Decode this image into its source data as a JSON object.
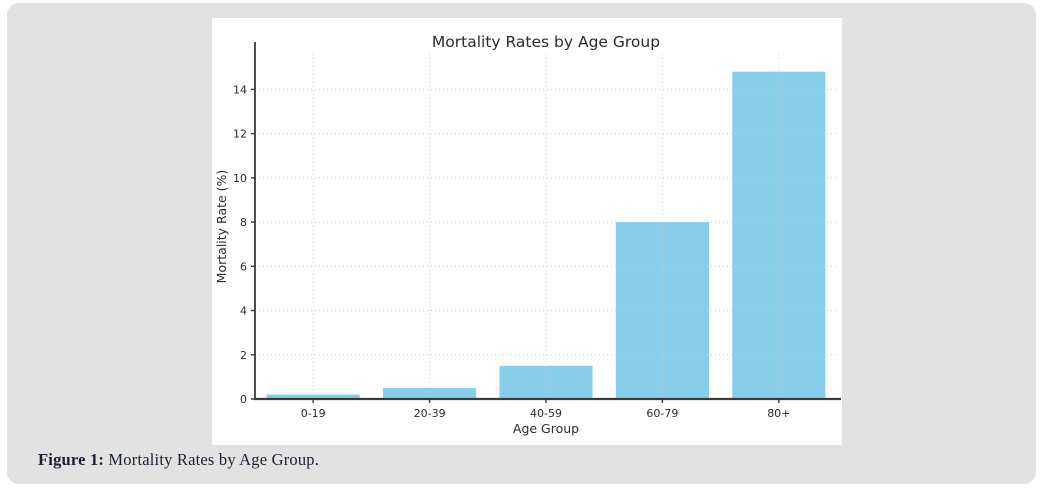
{
  "page": {
    "background_color": "#ffffff",
    "panel_color": "#e2e2e2",
    "card_color": "#ffffff"
  },
  "figure_caption": {
    "label": "Figure 1:",
    "text": " Mortality Rates by Age Group.",
    "color": "#1a2133"
  },
  "chart_data": {
    "type": "bar",
    "title": "Mortality Rates by Age Group",
    "categories": [
      "0-19",
      "20-39",
      "40-59",
      "60-79",
      "80+"
    ],
    "values": [
      0.2,
      0.5,
      1.5,
      8.0,
      14.8
    ],
    "xlabel": "Age Group",
    "ylabel": "Mortality Rate (%)",
    "ylim": [
      0,
      15.6
    ],
    "yticks": [
      0,
      2,
      4,
      6,
      8,
      10,
      12,
      14
    ],
    "bar_color": "#87CEEB",
    "bar_width_fraction": 0.8,
    "grid": true,
    "grid_style": "dotted",
    "grid_color": "#c9c9c9",
    "grid_over_bars": true,
    "legend": null,
    "axis_color": "#3a3a3a",
    "text_color": "#2b2b2b",
    "title_font_size": 15.5,
    "label_font_size": 12.5,
    "tick_font_size": 11
  }
}
